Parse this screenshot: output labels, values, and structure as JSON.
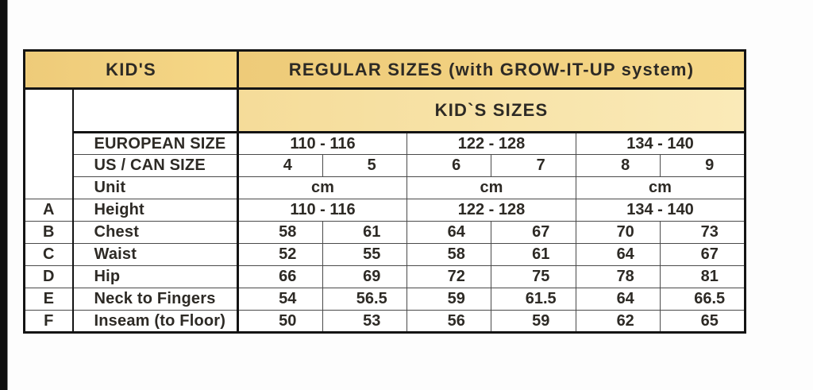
{
  "page": {
    "description": "Kids clothing size chart table on white background with black bar at left edge"
  },
  "colors": {
    "page_bg": "#fdfdfd",
    "side_bar": "#101010",
    "border_dark": "#141414",
    "line_thin": "#4a4a4a",
    "text": "#2d2a25",
    "header_tan_left": "#eecb79",
    "header_tan_right": "#f5d787",
    "subheader_tan_left": "#f5dc99",
    "subheader_tan_right": "#faeab8"
  },
  "header": {
    "kids": "KID'S",
    "regular_sizes": "REGULAR SIZES (with GROW-IT-UP system)",
    "kids_sizes": "KID`S SIZES"
  },
  "size_table": {
    "european_size_label": "EUROPEAN SIZE",
    "european_sizes": [
      "110 - 116",
      "122 - 128",
      "134 - 140"
    ],
    "us_can_label": "US / CAN SIZE",
    "us_can_sizes": [
      "4",
      "5",
      "6",
      "7",
      "8",
      "9"
    ],
    "unit_label": "Unit",
    "units": [
      "cm",
      "cm",
      "cm"
    ],
    "measurement_rows": [
      {
        "letter": "A",
        "label": "Height",
        "span": true,
        "values": [
          "110 - 116",
          "122 - 128",
          "134 - 140"
        ]
      },
      {
        "letter": "B",
        "label": "Chest",
        "span": false,
        "values": [
          "58",
          "61",
          "64",
          "67",
          "70",
          "73"
        ]
      },
      {
        "letter": "C",
        "label": "Waist",
        "span": false,
        "values": [
          "52",
          "55",
          "58",
          "61",
          "64",
          "67"
        ]
      },
      {
        "letter": "D",
        "label": "Hip",
        "span": false,
        "values": [
          "66",
          "69",
          "72",
          "75",
          "78",
          "81"
        ]
      },
      {
        "letter": "E",
        "label": "Neck to Fingers",
        "span": false,
        "values": [
          "54",
          "56.5",
          "59",
          "61.5",
          "64",
          "66.5"
        ]
      },
      {
        "letter": "F",
        "label": "Inseam (to Floor)",
        "span": false,
        "values": [
          "50",
          "53",
          "56",
          "59",
          "62",
          "65"
        ]
      }
    ]
  }
}
